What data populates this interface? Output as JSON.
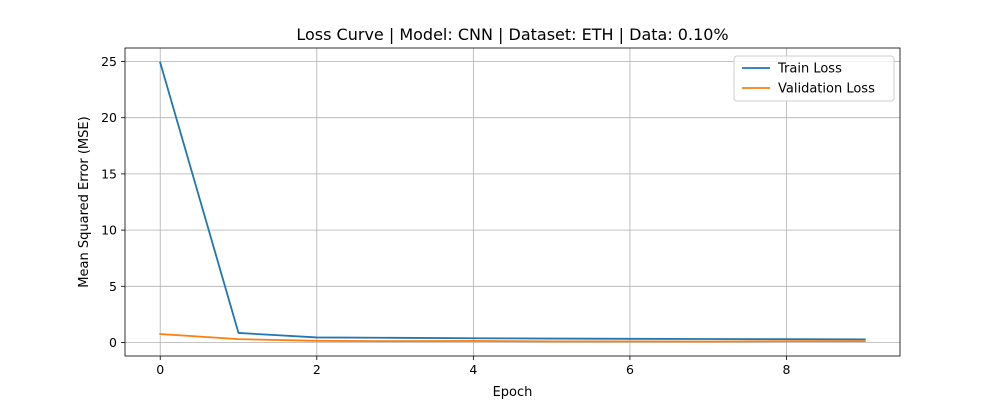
{
  "chart_data": {
    "type": "line",
    "title": "Loss Curve | Model: CNN | Dataset: ETH | Data: 0.10%",
    "xlabel": "Epoch",
    "ylabel": "Mean Squared Error (MSE)",
    "x": [
      0,
      1,
      2,
      3,
      4,
      5,
      6,
      7,
      8,
      9
    ],
    "xlim": [
      -0.45,
      9.45
    ],
    "ylim": [
      -1.2,
      26.2
    ],
    "xticks": [
      0,
      2,
      4,
      6,
      8
    ],
    "yticks": [
      0,
      5,
      10,
      15,
      20,
      25
    ],
    "xtick_labels": [
      "0",
      "2",
      "4",
      "6",
      "8"
    ],
    "ytick_labels": [
      "0",
      "5",
      "10",
      "15",
      "20",
      "25"
    ],
    "grid": true,
    "legend_position": "top-right",
    "series": [
      {
        "name": "Train Loss",
        "color": "#1f77b4",
        "values": [
          24.9,
          0.85,
          0.45,
          0.42,
          0.38,
          0.35,
          0.33,
          0.31,
          0.3,
          0.28
        ]
      },
      {
        "name": "Validation Loss",
        "color": "#ff7f0e",
        "values": [
          0.75,
          0.3,
          0.15,
          0.12,
          0.14,
          0.1,
          0.1,
          0.09,
          0.12,
          0.12
        ]
      }
    ]
  }
}
